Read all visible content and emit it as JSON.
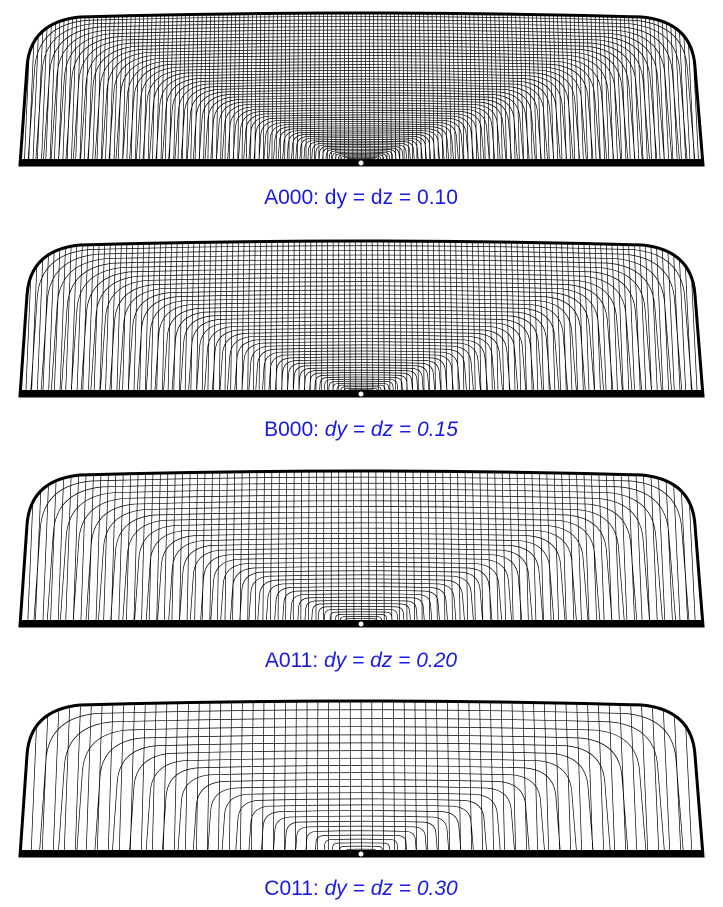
{
  "panels": [
    {
      "label": "A000:",
      "equation": "dy = dz = 0.10",
      "italic": false
    },
    {
      "label": "B000:",
      "equation": "dy = dz = 0.15",
      "italic": true
    },
    {
      "label": "A011:",
      "equation": "dy = dz = 0.20",
      "italic": true
    },
    {
      "label": "C011:",
      "equation": "dy = dz = 0.30",
      "italic": true
    }
  ]
}
